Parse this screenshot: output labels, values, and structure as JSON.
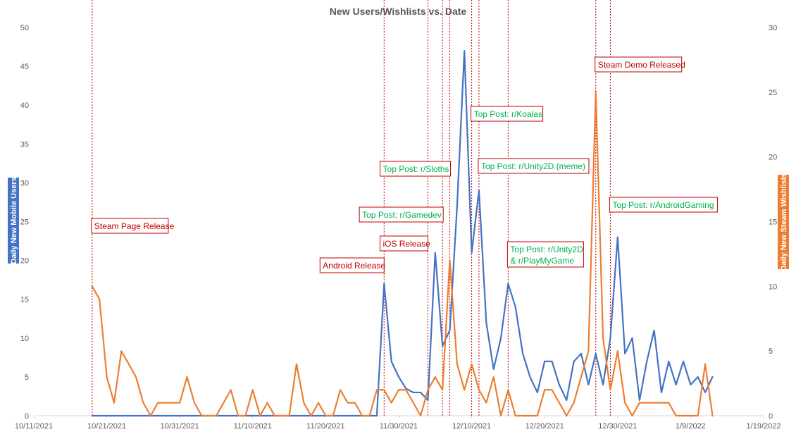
{
  "chart_data": {
    "type": "line",
    "title": "New Users/Wishlists vs. Date",
    "y_left_label": "Daily New Mobile Users",
    "y_right_label": "Daily New Steam Wishlists",
    "x_axis": {
      "min": "2021-10-11",
      "max": "2022-01-19",
      "ticks": [
        "10/11/2021",
        "10/21/2021",
        "10/31/2021",
        "11/10/2021",
        "11/20/2021",
        "11/30/2021",
        "12/10/2021",
        "12/20/2021",
        "12/30/2021",
        "1/9/2022",
        "1/19/2022"
      ]
    },
    "y_left": {
      "min": 0,
      "max": 50,
      "ticks": [
        0,
        5,
        10,
        15,
        20,
        25,
        30,
        35,
        40,
        45,
        50
      ]
    },
    "y_right": {
      "min": 0,
      "max": 30,
      "ticks": [
        0,
        5,
        10,
        15,
        20,
        25,
        30
      ]
    },
    "grid": false,
    "colors": {
      "mobile": "#4472C4",
      "wishlists": "#ED7D31",
      "annotation_line": "#C00000",
      "annotation_red": "#C00000",
      "annotation_green": "#00B050"
    },
    "series": [
      {
        "axis": "left",
        "color": "#4472C4",
        "points": [
          [
            "2021-10-19",
            0
          ],
          [
            "2021-10-20",
            0
          ],
          [
            "2021-10-21",
            0
          ],
          [
            "2021-10-22",
            0
          ],
          [
            "2021-10-23",
            0
          ],
          [
            "2021-10-24",
            0
          ],
          [
            "2021-10-25",
            0
          ],
          [
            "2021-10-26",
            0
          ],
          [
            "2021-10-27",
            0
          ],
          [
            "2021-10-28",
            0
          ],
          [
            "2021-10-29",
            0
          ],
          [
            "2021-10-30",
            0
          ],
          [
            "2021-10-31",
            0
          ],
          [
            "2021-11-01",
            0
          ],
          [
            "2021-11-02",
            0
          ],
          [
            "2021-11-03",
            0
          ],
          [
            "2021-11-04",
            0
          ],
          [
            "2021-11-05",
            0
          ],
          [
            "2021-11-06",
            0
          ],
          [
            "2021-11-07",
            0
          ],
          [
            "2021-11-08",
            0
          ],
          [
            "2021-11-09",
            0
          ],
          [
            "2021-11-10",
            0
          ],
          [
            "2021-11-11",
            0
          ],
          [
            "2021-11-12",
            0
          ],
          [
            "2021-11-13",
            0
          ],
          [
            "2021-11-14",
            0
          ],
          [
            "2021-11-15",
            0
          ],
          [
            "2021-11-16",
            0
          ],
          [
            "2021-11-17",
            0
          ],
          [
            "2021-11-18",
            0
          ],
          [
            "2021-11-19",
            0
          ],
          [
            "2021-11-20",
            0
          ],
          [
            "2021-11-21",
            0
          ],
          [
            "2021-11-22",
            0
          ],
          [
            "2021-11-23",
            0
          ],
          [
            "2021-11-24",
            0
          ],
          [
            "2021-11-25",
            0
          ],
          [
            "2021-11-26",
            0
          ],
          [
            "2021-11-27",
            0
          ],
          [
            "2021-11-28",
            17
          ],
          [
            "2021-11-29",
            7
          ],
          [
            "2021-11-30",
            5
          ],
          [
            "2021-12-01",
            3.5
          ],
          [
            "2021-12-02",
            3
          ],
          [
            "2021-12-03",
            3
          ],
          [
            "2021-12-04",
            2
          ],
          [
            "2021-12-05",
            21
          ],
          [
            "2021-12-06",
            9
          ],
          [
            "2021-12-07",
            11
          ],
          [
            "2021-12-08",
            27
          ],
          [
            "2021-12-09",
            47
          ],
          [
            "2021-12-10",
            21
          ],
          [
            "2021-12-11",
            29
          ],
          [
            "2021-12-12",
            12
          ],
          [
            "2021-12-13",
            6
          ],
          [
            "2021-12-14",
            10
          ],
          [
            "2021-12-15",
            17
          ],
          [
            "2021-12-16",
            14
          ],
          [
            "2021-12-17",
            8
          ],
          [
            "2021-12-18",
            5
          ],
          [
            "2021-12-19",
            3
          ],
          [
            "2021-12-20",
            7
          ],
          [
            "2021-12-21",
            7
          ],
          [
            "2021-12-22",
            4
          ],
          [
            "2021-12-23",
            2
          ],
          [
            "2021-12-24",
            7
          ],
          [
            "2021-12-25",
            8
          ],
          [
            "2021-12-26",
            4
          ],
          [
            "2021-12-27",
            8
          ],
          [
            "2021-12-28",
            4
          ],
          [
            "2021-12-29",
            10
          ],
          [
            "2021-12-30",
            23
          ],
          [
            "2021-12-31",
            8
          ],
          [
            "2022-01-01",
            10
          ],
          [
            "2022-01-02",
            2
          ],
          [
            "2022-01-03",
            7
          ],
          [
            "2022-01-04",
            11
          ],
          [
            "2022-01-05",
            3
          ],
          [
            "2022-01-06",
            7
          ],
          [
            "2022-01-07",
            4
          ],
          [
            "2022-01-08",
            7
          ],
          [
            "2022-01-09",
            4
          ],
          [
            "2022-01-10",
            5
          ],
          [
            "2022-01-11",
            3
          ],
          [
            "2022-01-12",
            5
          ]
        ]
      },
      {
        "axis": "right",
        "color": "#ED7D31",
        "points": [
          [
            "2021-10-19",
            10
          ],
          [
            "2021-10-20",
            9
          ],
          [
            "2021-10-21",
            3
          ],
          [
            "2021-10-22",
            1
          ],
          [
            "2021-10-23",
            5
          ],
          [
            "2021-10-24",
            4
          ],
          [
            "2021-10-25",
            3
          ],
          [
            "2021-10-26",
            1
          ],
          [
            "2021-10-27",
            0
          ],
          [
            "2021-10-28",
            1
          ],
          [
            "2021-10-29",
            1
          ],
          [
            "2021-10-30",
            1
          ],
          [
            "2021-10-31",
            1
          ],
          [
            "2021-11-01",
            3
          ],
          [
            "2021-11-02",
            1
          ],
          [
            "2021-11-03",
            0
          ],
          [
            "2021-11-04",
            0
          ],
          [
            "2021-11-05",
            0
          ],
          [
            "2021-11-06",
            1
          ],
          [
            "2021-11-07",
            2
          ],
          [
            "2021-11-08",
            0
          ],
          [
            "2021-11-09",
            0
          ],
          [
            "2021-11-10",
            2
          ],
          [
            "2021-11-11",
            0
          ],
          [
            "2021-11-12",
            1
          ],
          [
            "2021-11-13",
            0
          ],
          [
            "2021-11-14",
            0
          ],
          [
            "2021-11-15",
            0
          ],
          [
            "2021-11-16",
            4
          ],
          [
            "2021-11-17",
            1
          ],
          [
            "2021-11-18",
            0
          ],
          [
            "2021-11-19",
            1
          ],
          [
            "2021-11-20",
            0
          ],
          [
            "2021-11-21",
            0
          ],
          [
            "2021-11-22",
            2
          ],
          [
            "2021-11-23",
            1
          ],
          [
            "2021-11-24",
            1
          ],
          [
            "2021-11-25",
            0
          ],
          [
            "2021-11-26",
            0
          ],
          [
            "2021-11-27",
            2
          ],
          [
            "2021-11-28",
            2
          ],
          [
            "2021-11-29",
            1
          ],
          [
            "2021-11-30",
            2
          ],
          [
            "2021-12-01",
            2
          ],
          [
            "2021-12-02",
            1
          ],
          [
            "2021-12-03",
            0
          ],
          [
            "2021-12-04",
            2
          ],
          [
            "2021-12-05",
            3
          ],
          [
            "2021-12-06",
            2
          ],
          [
            "2021-12-07",
            12
          ],
          [
            "2021-12-08",
            4
          ],
          [
            "2021-12-09",
            2
          ],
          [
            "2021-12-10",
            4
          ],
          [
            "2021-12-11",
            2
          ],
          [
            "2021-12-12",
            1
          ],
          [
            "2021-12-13",
            3
          ],
          [
            "2021-12-14",
            0
          ],
          [
            "2021-12-15",
            2
          ],
          [
            "2021-12-16",
            0
          ],
          [
            "2021-12-17",
            0
          ],
          [
            "2021-12-18",
            0
          ],
          [
            "2021-12-19",
            0
          ],
          [
            "2021-12-20",
            2
          ],
          [
            "2021-12-21",
            2
          ],
          [
            "2021-12-22",
            1
          ],
          [
            "2021-12-23",
            0
          ],
          [
            "2021-12-24",
            1
          ],
          [
            "2021-12-25",
            3
          ],
          [
            "2021-12-26",
            5
          ],
          [
            "2021-12-27",
            25
          ],
          [
            "2021-12-28",
            6
          ],
          [
            "2021-12-29",
            2
          ],
          [
            "2021-12-30",
            5
          ],
          [
            "2021-12-31",
            1
          ],
          [
            "2022-01-01",
            0
          ],
          [
            "2022-01-02",
            1
          ],
          [
            "2022-01-03",
            1
          ],
          [
            "2022-01-04",
            1
          ],
          [
            "2022-01-05",
            1
          ],
          [
            "2022-01-06",
            1
          ],
          [
            "2022-01-07",
            0
          ],
          [
            "2022-01-08",
            0
          ],
          [
            "2022-01-09",
            0
          ],
          [
            "2022-01-10",
            0
          ],
          [
            "2022-01-11",
            4
          ],
          [
            "2022-01-12",
            0
          ]
        ]
      }
    ],
    "annotations": [
      {
        "text": "Steam Page Release",
        "date": "2021-10-19",
        "color": "#C00000"
      },
      {
        "text": "Android Release",
        "date": "2021-11-28",
        "color": "#C00000"
      },
      {
        "text": "iOS Release",
        "date": "2021-12-04",
        "color": "#C00000"
      },
      {
        "text": "Top Post: r/Gamedev",
        "date": "2021-12-06",
        "color": "#00B050"
      },
      {
        "text": "Top Post: r/Sloths",
        "date": "2021-12-07",
        "color": "#00B050"
      },
      {
        "text": "Top Post: r/Koalas",
        "date": "2021-12-10",
        "color": "#00B050"
      },
      {
        "text": "Top Post: r/Unity2D (meme)",
        "date": "2021-12-11",
        "color": "#00B050"
      },
      {
        "text": [
          "Top Post: r/Unity2D",
          "& r/PlayMyGame"
        ],
        "date": "2021-12-15",
        "color": "#00B050"
      },
      {
        "text": "Steam Demo Released",
        "date": "2021-12-27",
        "color": "#C00000"
      },
      {
        "text": "Top Post: r/AndroidGaming",
        "date": "2021-12-29",
        "color": "#00B050"
      }
    ]
  }
}
